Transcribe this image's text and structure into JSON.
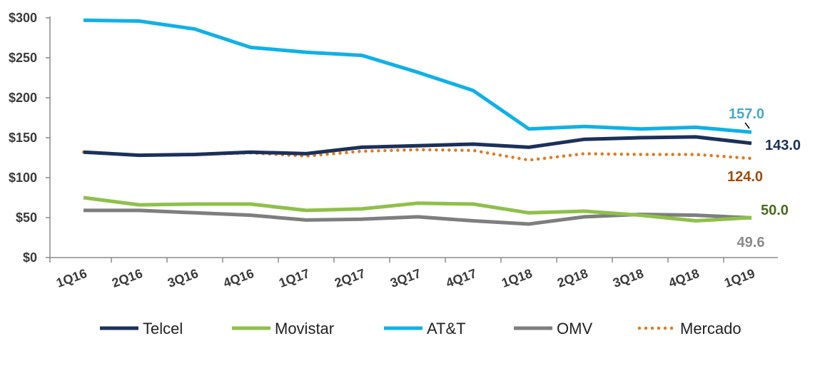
{
  "chart_data": {
    "type": "line",
    "categories": [
      "1Q16",
      "2Q16",
      "3Q16",
      "4Q16",
      "1Q17",
      "2Q17",
      "3Q17",
      "4Q17",
      "1Q18",
      "2Q18",
      "3Q18",
      "4Q18",
      "1Q19"
    ],
    "ylim": [
      0,
      300
    ],
    "yticks": [
      {
        "value": 0,
        "label": "$0"
      },
      {
        "value": 50,
        "label": "$50"
      },
      {
        "value": 100,
        "label": "$100"
      },
      {
        "value": 150,
        "label": "$150"
      },
      {
        "value": 200,
        "label": "$200"
      },
      {
        "value": 250,
        "label": "$250"
      },
      {
        "value": 300,
        "label": "$300"
      }
    ],
    "grid": false,
    "legend_position": "bottom",
    "series": [
      {
        "name": "Telcel",
        "color": "#1b3158",
        "style": "solid",
        "values": [
          132,
          128,
          129,
          132,
          130,
          138,
          140,
          142,
          138,
          148,
          150,
          151,
          143
        ],
        "end_label": "143.0",
        "end_label_color": "#1b3158"
      },
      {
        "name": "Movistar",
        "color": "#8fc04a",
        "style": "solid",
        "values": [
          75,
          66,
          67,
          67,
          59,
          61,
          68,
          67,
          56,
          58,
          53,
          46,
          50
        ],
        "end_label": "50.0",
        "end_label_color": "#4a6b1e"
      },
      {
        "name": "AT&T",
        "color": "#0fb1e6",
        "style": "solid",
        "values": [
          297,
          296,
          286,
          263,
          257,
          253,
          232,
          209,
          161,
          164,
          161,
          163,
          157
        ],
        "end_label": "157.0",
        "end_label_color": "#46a8cc"
      },
      {
        "name": "OMV",
        "color": "#7e7e7e",
        "style": "solid",
        "values": [
          59,
          59,
          56,
          53,
          47,
          48,
          51,
          46,
          42,
          51,
          54,
          53,
          49.6
        ],
        "end_label": "49.6",
        "end_label_color": "#8a8a8a"
      },
      {
        "name": "Mercado",
        "color": "#e07b1e",
        "style": "dotted",
        "values": [
          132,
          128,
          129,
          131,
          127,
          133,
          135,
          134,
          122,
          130,
          129,
          129,
          124
        ],
        "end_label": "124.0",
        "end_label_color": "#a34a06"
      }
    ]
  }
}
